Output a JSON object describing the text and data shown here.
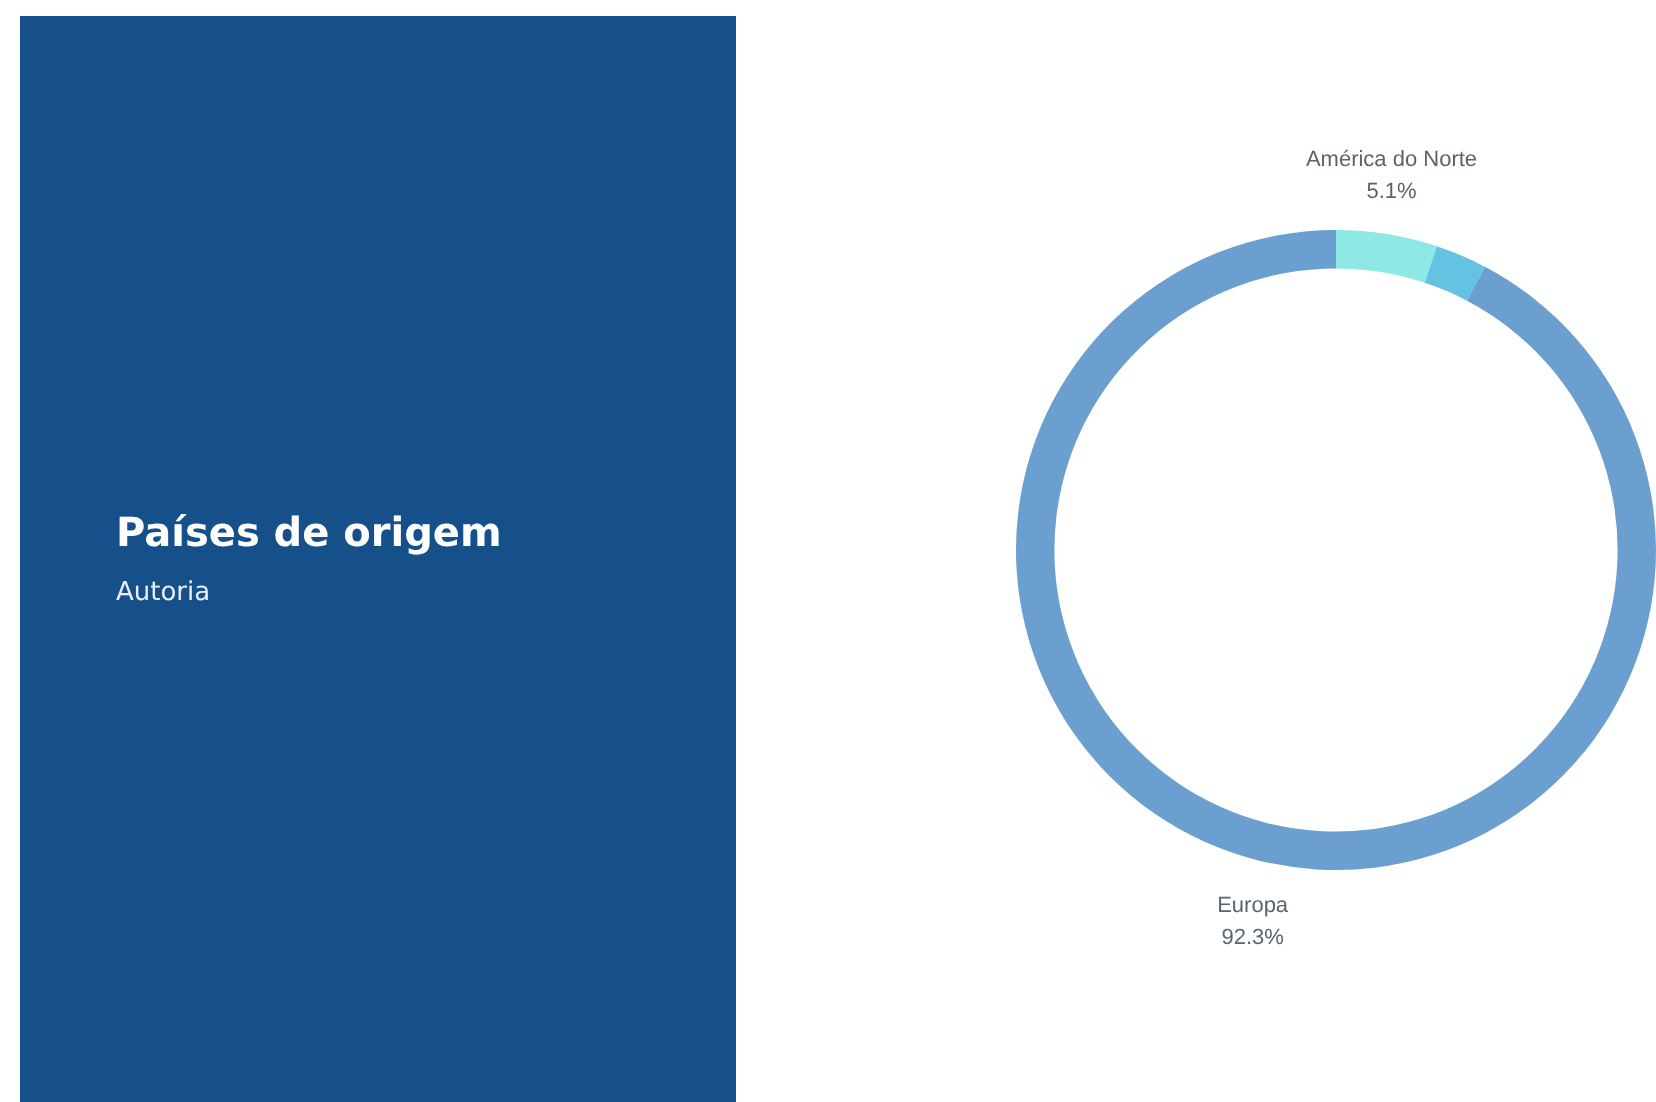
{
  "chart_data": {
    "type": "donut",
    "title": "Países de origem",
    "subtitle": "Autoria",
    "categories": [
      "América do Norte",
      null,
      "Europa"
    ],
    "values": [
      5.1,
      2.6,
      92.3
    ],
    "value_labels": [
      "5.1%",
      null,
      "92.3%"
    ],
    "colors": [
      "#8de8e6",
      "#64c3e3",
      "#6a9fd0"
    ],
    "legend": false
  }
}
